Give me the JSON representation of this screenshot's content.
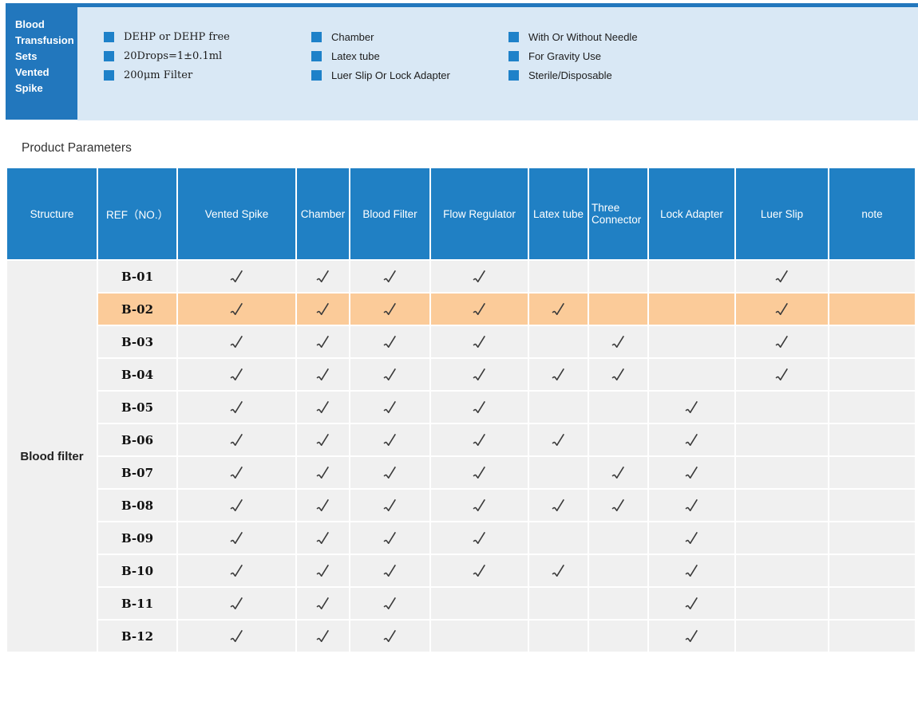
{
  "banner": {
    "title": "Blood Transfusion Sets Vented Spike",
    "features": {
      "col1": [
        "DEHP or DEHP free",
        "20Drops=1±0.1ml",
        "200μm Filter"
      ],
      "col2": [
        "Chamber",
        "Latex tube",
        "Luer Slip Or Lock Adapter"
      ],
      "col3": [
        "With Or Without Needle",
        "For Gravity Use",
        "Sterile/Disposable"
      ]
    }
  },
  "section_title": "Product Parameters",
  "table": {
    "columns": [
      "Structure",
      "REF（NO.）",
      "Vented Spike",
      "Chamber",
      "Blood Filter",
      "Flow Regulator",
      "Latex tube",
      "Three Connector",
      "Lock Adapter",
      "Luer Slip",
      "note"
    ],
    "structure_label": "Blood filter",
    "check_symbol": "√",
    "rows": [
      {
        "ref": "B-01",
        "highlighted": false,
        "checks": [
          1,
          1,
          1,
          1,
          0,
          0,
          0,
          1,
          0
        ]
      },
      {
        "ref": "B-02",
        "highlighted": true,
        "checks": [
          1,
          1,
          1,
          1,
          1,
          0,
          0,
          1,
          0
        ]
      },
      {
        "ref": "B-03",
        "highlighted": false,
        "checks": [
          1,
          1,
          1,
          1,
          0,
          1,
          0,
          1,
          0
        ]
      },
      {
        "ref": "B-04",
        "highlighted": false,
        "checks": [
          1,
          1,
          1,
          1,
          1,
          1,
          0,
          1,
          0
        ]
      },
      {
        "ref": "B-05",
        "highlighted": false,
        "checks": [
          1,
          1,
          1,
          1,
          0,
          0,
          1,
          0,
          0
        ]
      },
      {
        "ref": "B-06",
        "highlighted": false,
        "checks": [
          1,
          1,
          1,
          1,
          1,
          0,
          1,
          0,
          0
        ]
      },
      {
        "ref": "B-07",
        "highlighted": false,
        "checks": [
          1,
          1,
          1,
          1,
          0,
          1,
          1,
          0,
          0
        ]
      },
      {
        "ref": "B-08",
        "highlighted": false,
        "checks": [
          1,
          1,
          1,
          1,
          1,
          1,
          1,
          0,
          0
        ]
      },
      {
        "ref": "B-09",
        "highlighted": false,
        "checks": [
          1,
          1,
          1,
          1,
          0,
          0,
          1,
          0,
          0
        ]
      },
      {
        "ref": "B-10",
        "highlighted": false,
        "checks": [
          1,
          1,
          1,
          1,
          1,
          0,
          1,
          0,
          0
        ]
      },
      {
        "ref": "B-11",
        "highlighted": false,
        "checks": [
          1,
          1,
          1,
          0,
          0,
          0,
          1,
          0,
          0
        ]
      },
      {
        "ref": "B-12",
        "highlighted": false,
        "checks": [
          1,
          1,
          1,
          0,
          0,
          0,
          1,
          0,
          0
        ]
      }
    ]
  },
  "colors": {
    "header_blue": "#2080c4",
    "box_blue": "#2277bd",
    "banner_bg": "#d9e8f5",
    "bullet_blue": "#1e81c9",
    "highlight_orange": "#fbcb99",
    "row_gray": "#f0f0f0",
    "check_color": "#3a3a3a"
  }
}
